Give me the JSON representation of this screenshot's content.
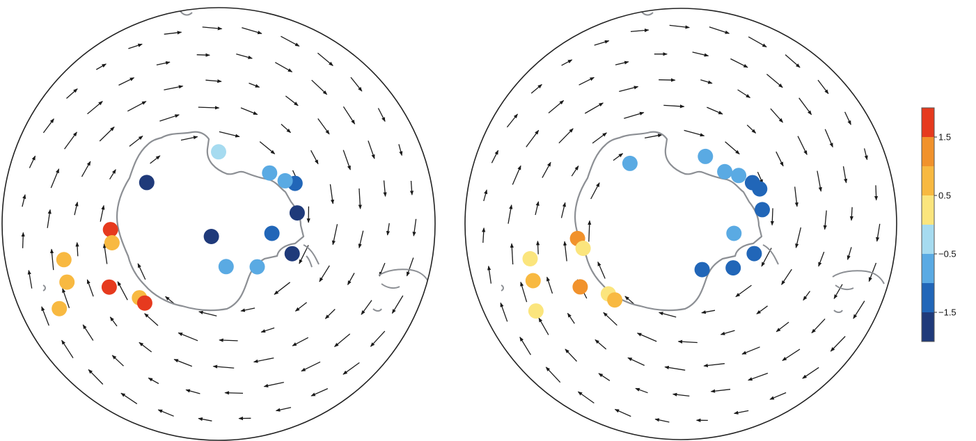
{
  "colors": {
    "coast": "#8c8f94",
    "arrow": "#1a1a1a",
    "frame": "#222222",
    "scale": [
      "#1f3a7a",
      "#2166b8",
      "#5aaae3",
      "#a6dbf0",
      "#fbe57d",
      "#f8b941",
      "#f1922c",
      "#e63a1e"
    ]
  },
  "colorbar": {
    "ticks": [
      {
        "label": "1.5",
        "value": 1.5
      },
      {
        "label": "0.5",
        "value": 0.5
      },
      {
        "label": "−0.5",
        "value": -0.5
      },
      {
        "label": "−1.5",
        "value": -1.5
      }
    ],
    "range": [
      -2,
      2
    ]
  },
  "maps": [
    {
      "name": "left",
      "flow": "cyclonic",
      "stations": [
        {
          "lon": -112,
          "lat": -68,
          "value": -1.8
        },
        {
          "lon": -100,
          "lat": -75,
          "value": -1.2
        },
        {
          "lon": -138,
          "lat": -74,
          "value": -0.9
        },
        {
          "lon": -170,
          "lat": -78,
          "value": -0.8
        },
        {
          "lon": 150,
          "lat": -86,
          "value": -1.8
        },
        {
          "lon": -82,
          "lat": -68,
          "value": -1.8
        },
        {
          "lon": -62,
          "lat": -66,
          "value": -1.3
        },
        {
          "lon": -57,
          "lat": -68,
          "value": -0.8
        },
        {
          "lon": -45,
          "lat": -70,
          "value": -0.7
        },
        {
          "lon": 0,
          "lat": -70,
          "value": -0.3
        },
        {
          "lon": 60,
          "lat": -67,
          "value": -1.9
        },
        {
          "lon": 93,
          "lat": -60,
          "value": 1.9
        },
        {
          "lon": 100,
          "lat": -60,
          "value": 0.9
        },
        {
          "lon": 120,
          "lat": -55,
          "value": 1.9
        },
        {
          "lon": 133,
          "lat": -60,
          "value": 0.9
        },
        {
          "lon": 137,
          "lat": -60,
          "value": 1.9
        },
        {
          "lon": 103,
          "lat": -46,
          "value": 0.9
        },
        {
          "lon": 111,
          "lat": -45,
          "value": 0.9
        },
        {
          "lon": 118,
          "lat": -40,
          "value": 0.9
        }
      ]
    },
    {
      "name": "right",
      "flow": "anticyclonic",
      "stations": [
        {
          "lon": -112,
          "lat": -68,
          "value": -1.2
        },
        {
          "lon": -100,
          "lat": -75,
          "value": -0.8
        },
        {
          "lon": -130,
          "lat": -71,
          "value": -1.2
        },
        {
          "lon": -155,
          "lat": -76,
          "value": -1.3
        },
        {
          "lon": -80,
          "lat": -67,
          "value": -1.2
        },
        {
          "lon": -66,
          "lat": -66,
          "value": -1.2
        },
        {
          "lon": -60,
          "lat": -67,
          "value": -1.3
        },
        {
          "lon": -50,
          "lat": -69,
          "value": -0.8
        },
        {
          "lon": -40,
          "lat": -71,
          "value": -0.8
        },
        {
          "lon": -20,
          "lat": -70,
          "value": -0.8
        },
        {
          "lon": 40,
          "lat": -68,
          "value": -0.8
        },
        {
          "lon": 98,
          "lat": -61,
          "value": 1.0
        },
        {
          "lon": 104,
          "lat": -62,
          "value": 0.2
        },
        {
          "lon": 122,
          "lat": -57,
          "value": 1.3
        },
        {
          "lon": 134,
          "lat": -62,
          "value": 0.2
        },
        {
          "lon": 139,
          "lat": -62,
          "value": 0.9
        },
        {
          "lon": 103,
          "lat": -47,
          "value": 0.2
        },
        {
          "lon": 111,
          "lat": -46,
          "value": 0.9
        },
        {
          "lon": 121,
          "lat": -43,
          "value": 0.3
        }
      ]
    }
  ]
}
